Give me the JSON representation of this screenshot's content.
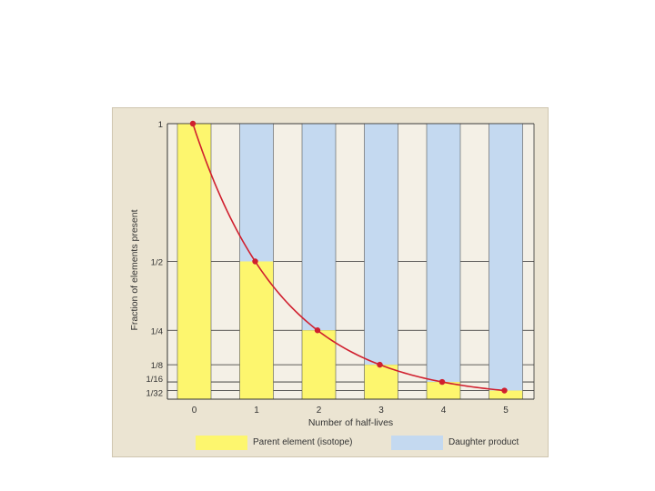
{
  "chart_data": {
    "type": "bar",
    "stacked": true,
    "x": [
      0,
      1,
      2,
      3,
      4,
      5
    ],
    "xlabel": "Number of half-lives",
    "ylabel": "Fraction of elements present",
    "yticks": [
      {
        "value": 1,
        "label": "1"
      },
      {
        "value": 0.5,
        "label": "1/2"
      },
      {
        "value": 0.25,
        "label": "1/4"
      },
      {
        "value": 0.125,
        "label": "1/8"
      },
      {
        "value": 0.0625,
        "label": "1/16"
      },
      {
        "value": 0.03125,
        "label": "1/32"
      }
    ],
    "ylim": [
      0,
      1
    ],
    "series": [
      {
        "name": "Parent element (isotope)",
        "color": "#fdf66e",
        "values": [
          1,
          0.5,
          0.25,
          0.125,
          0.0625,
          0.03125
        ]
      },
      {
        "name": "Daughter product",
        "color": "#c4d9f0",
        "values": [
          0,
          0.5,
          0.75,
          0.875,
          0.9375,
          0.96875
        ]
      }
    ],
    "curve_color": "#d01f2e",
    "grid": true,
    "legend_position": "bottom"
  }
}
